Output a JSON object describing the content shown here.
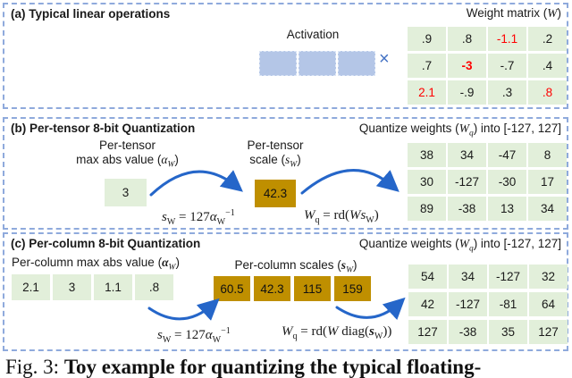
{
  "colors": {
    "panel_border": "#8FAADC",
    "green_cell": "#E2EFDA",
    "activation_cell": "#B4C6E7",
    "gold_cell": "#BF8F00",
    "arrow_blue": "#2566C9",
    "times_blue": "#4472C4",
    "highlight_red": "#FF0000"
  },
  "panel_a": {
    "title": "(a) Typical linear operations",
    "weight_label": {
      "pre": "Weight matrix (",
      "sym": "W",
      "post": ")"
    },
    "activation_label": "Activation",
    "times": "×",
    "matrix": [
      [
        ".9",
        ".8",
        "-1.1",
        ".2"
      ],
      [
        ".7",
        "-3",
        "-.7",
        ".4"
      ],
      [
        "2.1",
        "-.9",
        ".3",
        ".8"
      ]
    ],
    "red_cells": [
      [
        0,
        2
      ],
      [
        1,
        1
      ],
      [
        2,
        0
      ],
      [
        2,
        3
      ]
    ],
    "bold_cells": [
      [
        1,
        1
      ]
    ]
  },
  "panel_b": {
    "title": "(b) Per-tensor 8-bit Quantization",
    "quantize_label": {
      "pre": "Quantize weights (",
      "sym": "W",
      "sub": "q",
      "post": ") into [-127, 127]"
    },
    "maxabs_label": {
      "line1": "Per-tensor",
      "line2_pre": "max abs value (",
      "sym": "α",
      "sub": "W",
      "post": ")"
    },
    "maxabs_value": "3",
    "scale_label": {
      "line1": "Per-tensor",
      "line2_pre": "scale (",
      "sym": "s",
      "sub": "W",
      "post": ")"
    },
    "scale_value": "42.3",
    "formula_scale": {
      "lhs": "s",
      "lhs_sub": "W",
      "mid": " = 127",
      "sym": "α",
      "sym_sub": "W",
      "sup": "−1"
    },
    "formula_quant": {
      "lhs": "W",
      "lhs_sub": "q",
      "mid": " = rd(",
      "a": "W",
      "b": "s",
      "b_sub": "W",
      "post": ")"
    },
    "matrix": [
      [
        "38",
        "34",
        "-47",
        "8"
      ],
      [
        "30",
        "-127",
        "-30",
        "17"
      ],
      [
        "89",
        "-38",
        "13",
        "34"
      ]
    ],
    "red_cells": [],
    "bold_cells": []
  },
  "panel_c": {
    "title": "(c) Per-column 8-bit Quantization",
    "quantize_label": {
      "pre": "Quantize weights (",
      "sym": "W",
      "sub": "q",
      "post": ") into [-127, 127]"
    },
    "maxabs_label": {
      "pre": "Per-column max abs value (",
      "sym": "α",
      "sub": "W",
      "post": ")"
    },
    "maxabs_values": [
      "2.1",
      "3",
      "1.1",
      ".8"
    ],
    "scales_label": {
      "pre": "Per-column scales (",
      "sym": "s",
      "sub": "W",
      "post": ")"
    },
    "scale_values": [
      "60.5",
      "42.3",
      "115",
      "159"
    ],
    "formula_scale": {
      "lhs": "s",
      "lhs_sub": "W",
      "mid": " = 127",
      "sym": "α",
      "sym_sub": "W",
      "sup": "−1"
    },
    "formula_quant": {
      "lhs": "W",
      "lhs_sub": "q",
      "mid": " = rd(",
      "a": "W",
      "mid2": " diag(",
      "b": "s",
      "b_sub": "W",
      "post": "))"
    },
    "matrix": [
      [
        "54",
        "34",
        "-127",
        "32"
      ],
      [
        "42",
        "-127",
        "-81",
        "64"
      ],
      [
        "127",
        "-38",
        "35",
        "127"
      ]
    ],
    "red_cells": [],
    "bold_cells": []
  },
  "caption": {
    "prefix": "Fig. 3: ",
    "bold": "Toy example for quantizing the typical floating-"
  }
}
